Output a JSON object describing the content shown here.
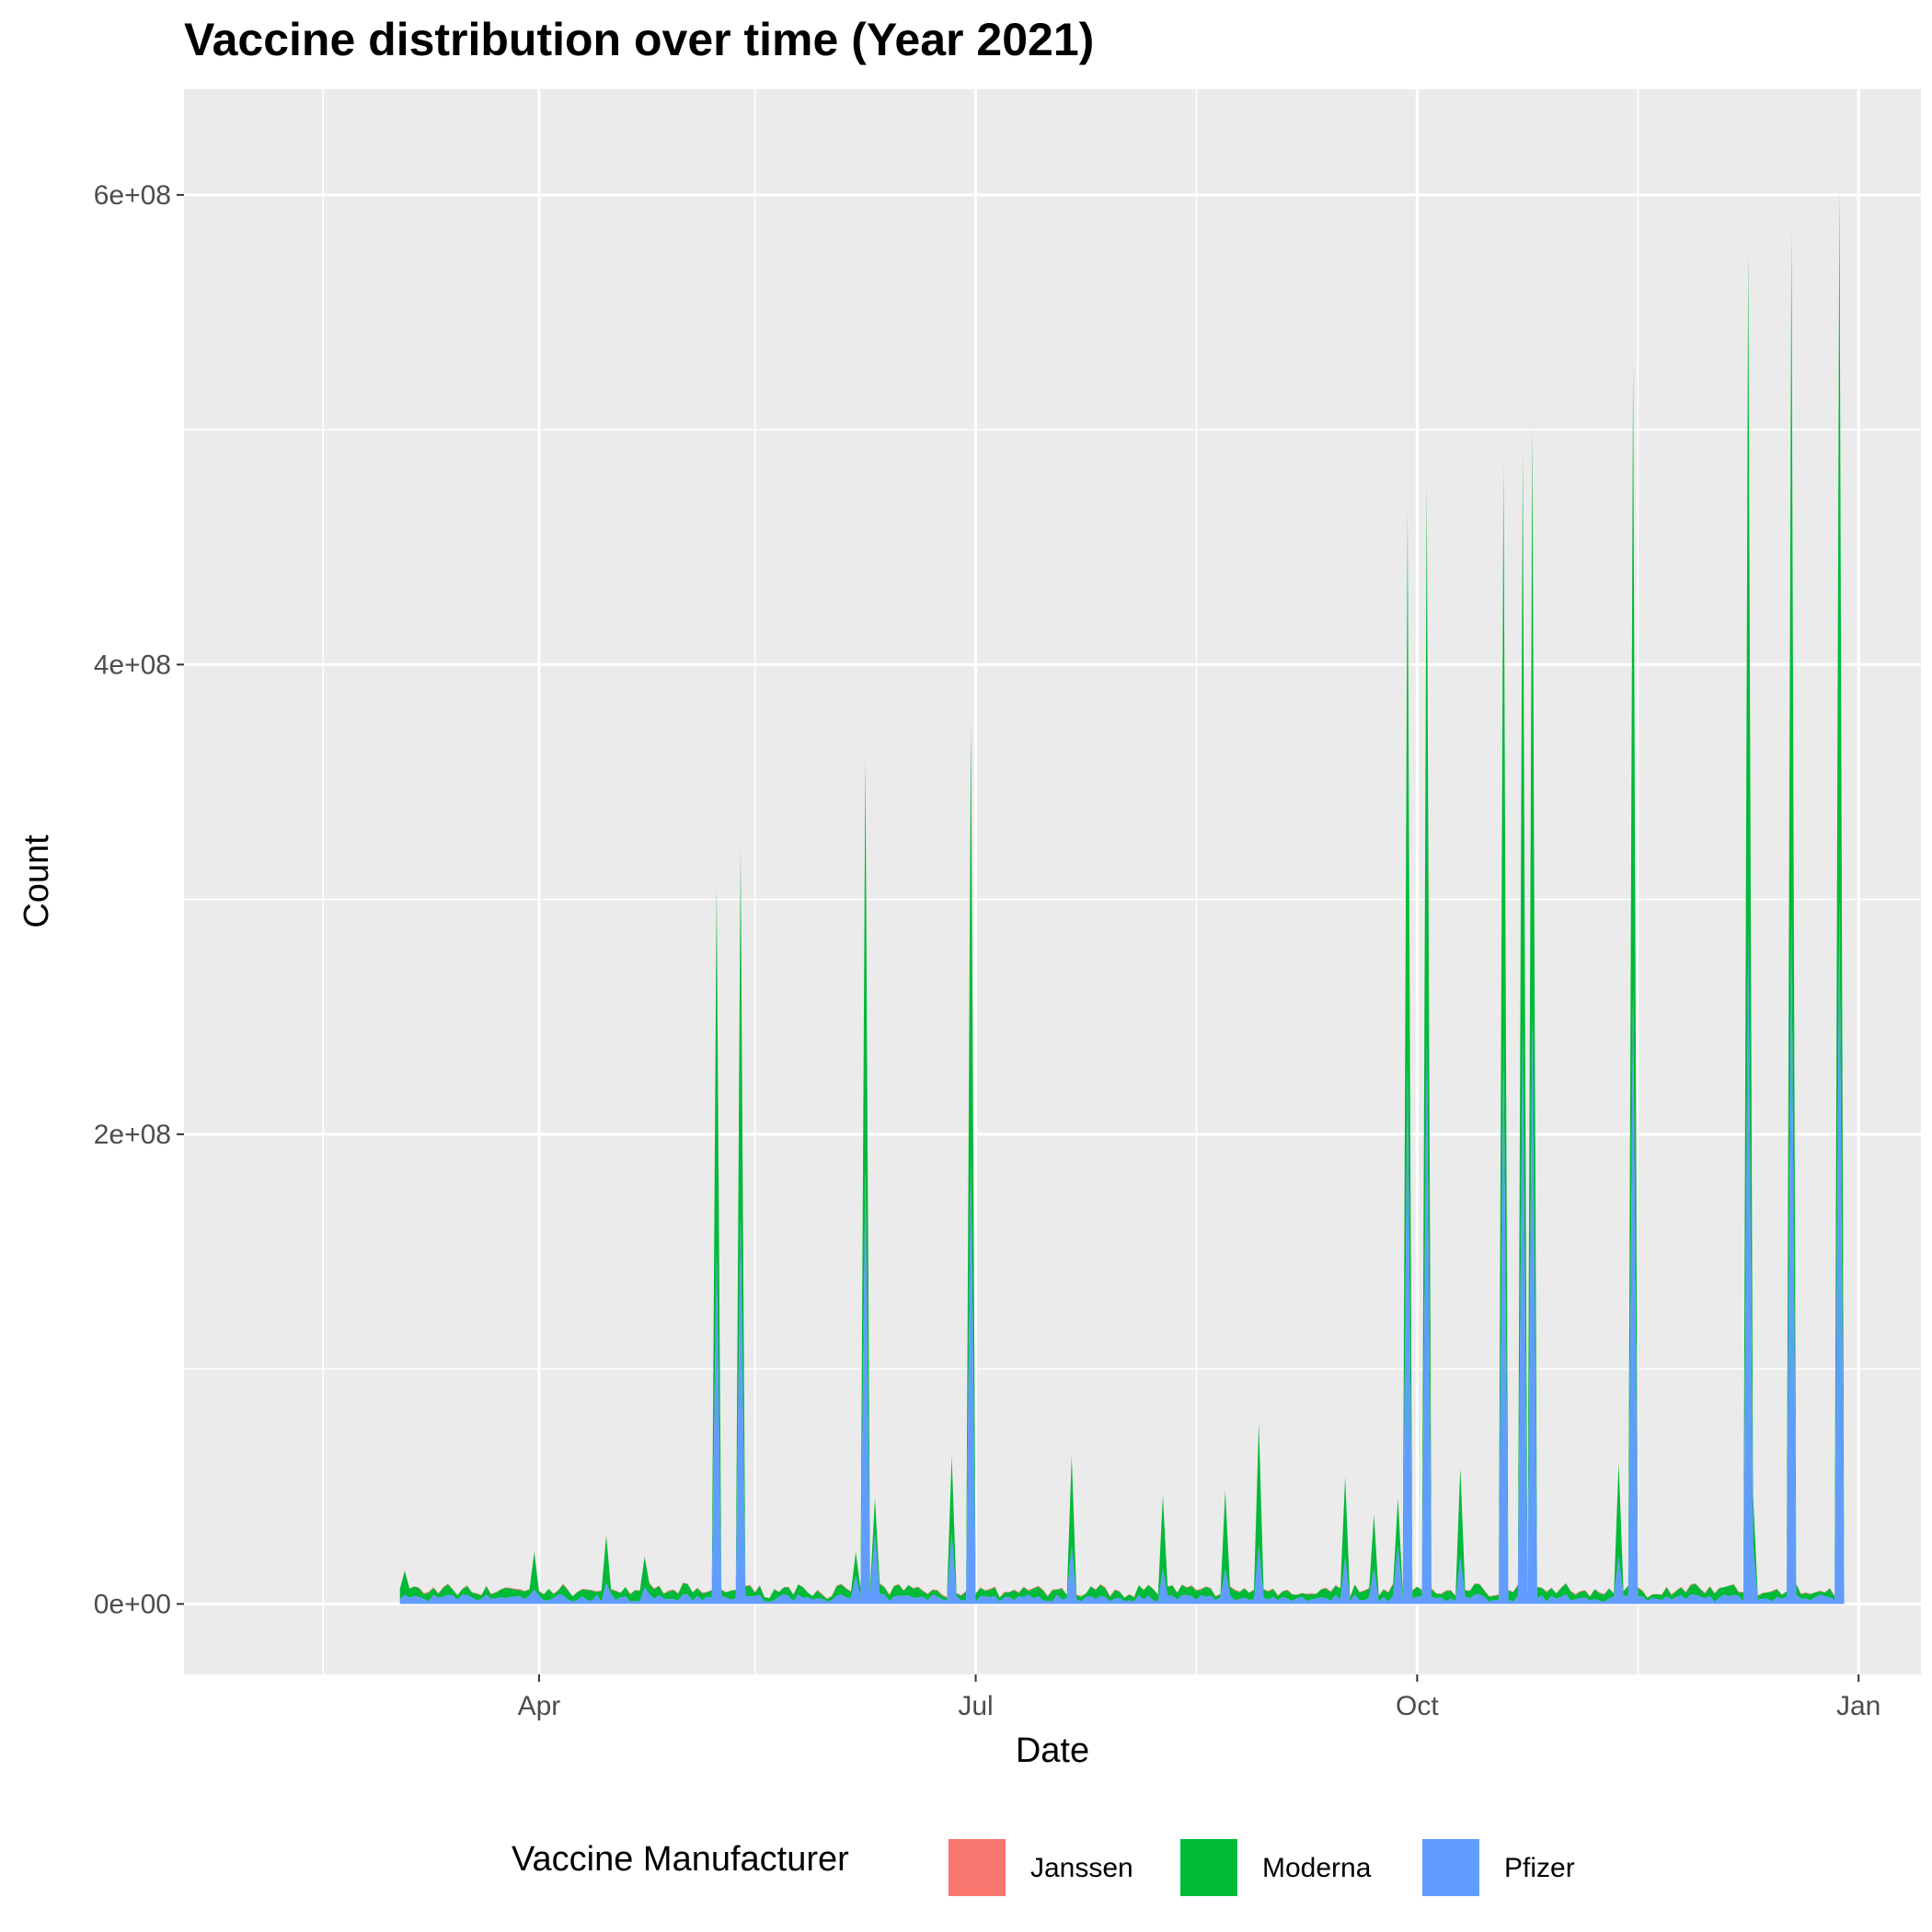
{
  "chart_data": {
    "type": "area",
    "stacked": true,
    "title": "Vaccine distribution over time (Year 2021)",
    "xlabel": "Date",
    "ylabel": "Count",
    "x_ticks": [
      {
        "date": "2021-04-01",
        "label": "Apr"
      },
      {
        "date": "2021-07-01",
        "label": "Jul"
      },
      {
        "date": "2021-10-01",
        "label": "Oct"
      },
      {
        "date": "2022-01-01",
        "label": "Jan"
      }
    ],
    "x_minor_dates": [
      "2021-02-15",
      "2021-05-16",
      "2021-08-16",
      "2021-11-16"
    ],
    "xlim": [
      "2021-01-17",
      "2022-01-14"
    ],
    "y_ticks": [
      {
        "value": 0,
        "label": "0e+00"
      },
      {
        "value": 200000000,
        "label": "2e+08"
      },
      {
        "value": 400000000,
        "label": "4e+08"
      },
      {
        "value": 600000000,
        "label": "6e+08"
      }
    ],
    "y_minor": [
      100000000,
      300000000,
      500000000
    ],
    "ylim": [
      -30000000,
      645000000
    ],
    "grid": true,
    "legend": {
      "title": "Vaccine Manufacturer",
      "position": "bottom",
      "entries": [
        {
          "name": "Janssen",
          "color": "#F8766D"
        },
        {
          "name": "Moderna",
          "color": "#00BA38"
        },
        {
          "name": "Pfizer",
          "color": "#619CFF"
        }
      ]
    },
    "series_order": [
      "Janssen",
      "Moderna",
      "Pfizer"
    ],
    "data_start": "2021-03-03",
    "data_end": "2021-12-29",
    "baseline": {
      "Janssen": 300000,
      "Moderna": 3000000,
      "Pfizer": 3000000
    },
    "spikes": [
      {
        "date": "2021-03-04",
        "Pfizer": 4000000,
        "Moderna": 10000000,
        "Janssen": 300000
      },
      {
        "date": "2021-03-31",
        "Pfizer": 6000000,
        "Moderna": 16000000,
        "Janssen": 300000
      },
      {
        "date": "2021-04-15",
        "Pfizer": 9000000,
        "Moderna": 20000000,
        "Janssen": 400000
      },
      {
        "date": "2021-04-23",
        "Pfizer": 7000000,
        "Moderna": 13000000,
        "Janssen": 300000
      },
      {
        "date": "2021-05-08",
        "Pfizer": 150000000,
        "Moderna": 155000000,
        "Janssen": 2000000
      },
      {
        "date": "2021-05-13",
        "Pfizer": 165000000,
        "Moderna": 155000000,
        "Janssen": 2000000
      },
      {
        "date": "2021-06-06",
        "Pfizer": 12000000,
        "Moderna": 10000000,
        "Janssen": 300000
      },
      {
        "date": "2021-06-08",
        "Pfizer": 185000000,
        "Moderna": 175000000,
        "Janssen": 2000000
      },
      {
        "date": "2021-06-10",
        "Pfizer": 30000000,
        "Moderna": 15000000,
        "Janssen": 300000
      },
      {
        "date": "2021-06-26",
        "Pfizer": 30000000,
        "Moderna": 33000000,
        "Janssen": 400000
      },
      {
        "date": "2021-06-30",
        "Pfizer": 190000000,
        "Moderna": 185000000,
        "Janssen": 2000000
      },
      {
        "date": "2021-07-21",
        "Pfizer": 25000000,
        "Moderna": 38000000,
        "Janssen": 300000
      },
      {
        "date": "2021-08-09",
        "Pfizer": 15000000,
        "Moderna": 31000000,
        "Janssen": 300000
      },
      {
        "date": "2021-08-22",
        "Pfizer": 15000000,
        "Moderna": 33000000,
        "Janssen": 300000
      },
      {
        "date": "2021-08-29",
        "Pfizer": 25000000,
        "Moderna": 52000000,
        "Janssen": 300000
      },
      {
        "date": "2021-09-16",
        "Pfizer": 20000000,
        "Moderna": 34000000,
        "Janssen": 300000
      },
      {
        "date": "2021-09-22",
        "Pfizer": 15000000,
        "Moderna": 23000000,
        "Janssen": 300000
      },
      {
        "date": "2021-09-27",
        "Pfizer": 25000000,
        "Moderna": 20000000,
        "Janssen": 300000
      },
      {
        "date": "2021-09-29",
        "Pfizer": 230000000,
        "Moderna": 235000000,
        "Janssen": 2000000
      },
      {
        "date": "2021-10-03",
        "Pfizer": 240000000,
        "Moderna": 235000000,
        "Janssen": 2000000
      },
      {
        "date": "2021-10-10",
        "Pfizer": 20000000,
        "Moderna": 38000000,
        "Janssen": 300000
      },
      {
        "date": "2021-10-19",
        "Pfizer": 240000000,
        "Moderna": 245000000,
        "Janssen": 2000000
      },
      {
        "date": "2021-10-23",
        "Pfizer": 245000000,
        "Moderna": 245000000,
        "Janssen": 2000000
      },
      {
        "date": "2021-10-25",
        "Pfizer": 250000000,
        "Moderna": 250000000,
        "Janssen": 2000000
      },
      {
        "date": "2021-11-12",
        "Pfizer": 20000000,
        "Moderna": 40000000,
        "Janssen": 300000
      },
      {
        "date": "2021-11-15",
        "Pfizer": 262000000,
        "Moderna": 265000000,
        "Janssen": 2000000
      },
      {
        "date": "2021-12-09",
        "Pfizer": 288000000,
        "Moderna": 288000000,
        "Janssen": 2000000
      },
      {
        "date": "2021-12-10",
        "Pfizer": 25000000,
        "Moderna": 22000000,
        "Janssen": 300000
      },
      {
        "date": "2021-12-18",
        "Pfizer": 292000000,
        "Moderna": 292000000,
        "Janssen": 2000000
      },
      {
        "date": "2021-12-28",
        "Pfizer": 300000000,
        "Moderna": 302000000,
        "Janssen": 2000000
      }
    ]
  }
}
